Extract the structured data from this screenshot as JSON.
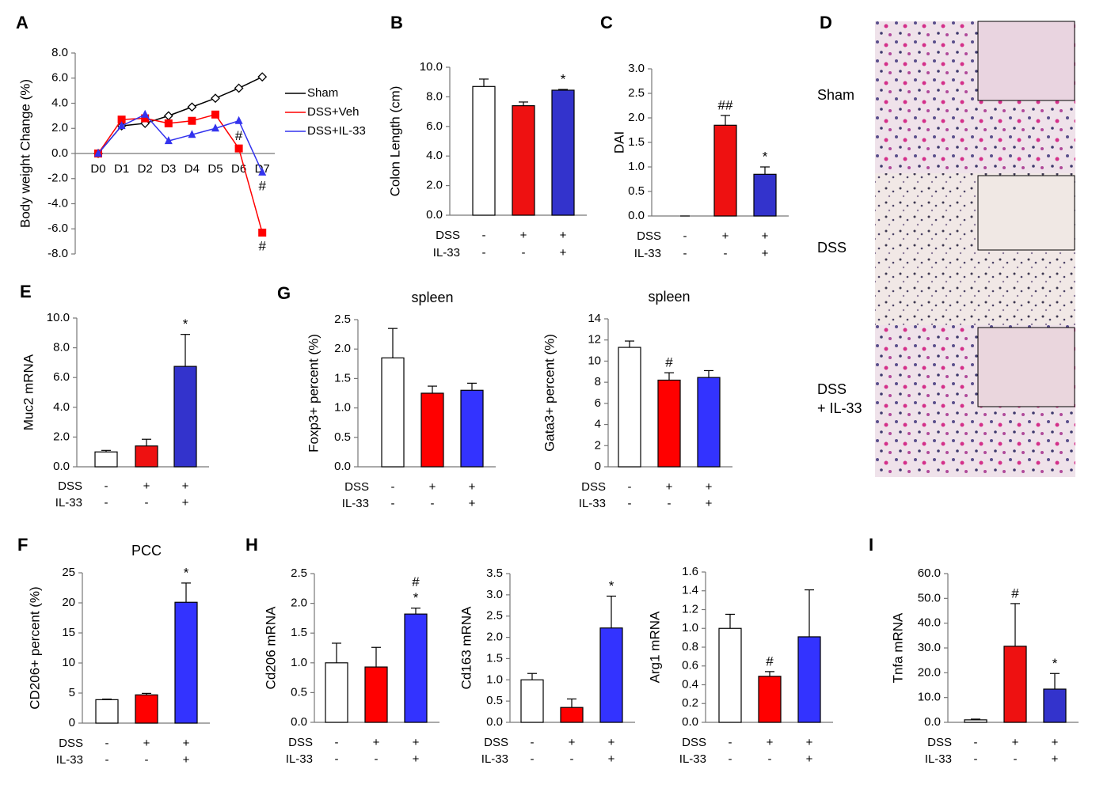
{
  "chart_data": [
    {
      "panel": "A",
      "type": "line",
      "ylabel": "Body weight Change (%)",
      "categories": [
        "D0",
        "D1",
        "D2",
        "D3",
        "D4",
        "D5",
        "D6",
        "D7"
      ],
      "series": [
        {
          "name": "Sham",
          "color": "#000000",
          "marker": "diamond",
          "values": [
            0,
            2.2,
            2.4,
            3.0,
            3.7,
            4.4,
            5.2,
            6.1
          ]
        },
        {
          "name": "DSS+Veh",
          "color": "#ff0000",
          "marker": "square",
          "values": [
            0,
            2.7,
            2.8,
            2.4,
            2.6,
            3.1,
            0.4,
            -6.3
          ]
        },
        {
          "name": "DSS+IL-33",
          "color": "#3333ee",
          "marker": "triangle",
          "values": [
            0,
            2.2,
            3.1,
            1.0,
            1.5,
            2.0,
            2.6,
            -1.5
          ]
        }
      ],
      "annotations": [
        {
          "text": "#",
          "series": 1,
          "index": 6,
          "position": "above"
        },
        {
          "text": "#",
          "series": 1,
          "index": 7,
          "position": "below"
        },
        {
          "text": "#",
          "series": 2,
          "index": 7,
          "position": "below"
        }
      ],
      "ylim": [
        -8,
        8
      ],
      "yticks": [
        {
          "value": -8,
          "label": "-8.0"
        },
        {
          "value": -6,
          "label": "-6.0"
        },
        {
          "value": -4,
          "label": "-4.0"
        },
        {
          "value": -2,
          "label": "-2.0"
        },
        {
          "value": 0,
          "label": "0.0"
        },
        {
          "value": 2,
          "label": "2.0"
        },
        {
          "value": 4,
          "label": "4.0"
        },
        {
          "value": 6,
          "label": "6.0"
        },
        {
          "value": 8,
          "label": "8.0"
        }
      ]
    },
    {
      "panel": "B",
      "type": "bar",
      "ylabel": "Colon Length (cm)",
      "values": [
        8.7,
        7.4,
        8.45
      ],
      "errors": [
        0.5,
        0.25,
        0.05
      ],
      "colors": [
        "#ffffff",
        "#ee1111",
        "#3333cc"
      ],
      "annotations": [
        {
          "text": "*",
          "index": 2
        }
      ],
      "conditions": [
        {
          "name": "DSS",
          "signs": [
            "-",
            "+",
            "+"
          ]
        },
        {
          "name": "IL-33",
          "signs": [
            "-",
            "-",
            "+"
          ]
        }
      ],
      "ylim": [
        0,
        10
      ],
      "yticks": [
        {
          "value": 0,
          "label": "0.0"
        },
        {
          "value": 2,
          "label": "2.0"
        },
        {
          "value": 4,
          "label": "4.0"
        },
        {
          "value": 6,
          "label": "6.0"
        },
        {
          "value": 8,
          "label": "8.0"
        },
        {
          "value": 10,
          "label": "10.0"
        }
      ]
    },
    {
      "panel": "C",
      "type": "bar",
      "ylabel": "DAI",
      "values": [
        0,
        1.85,
        0.85
      ],
      "errors": [
        0,
        0.2,
        0.15
      ],
      "colors": [
        "#ffffff",
        "#ee1111",
        "#3333cc"
      ],
      "annotations": [
        {
          "text": "##",
          "index": 1
        },
        {
          "text": "*",
          "index": 2
        }
      ],
      "conditions": [
        {
          "name": "DSS",
          "signs": [
            "-",
            "+",
            "+"
          ]
        },
        {
          "name": "IL-33",
          "signs": [
            "-",
            "-",
            "+"
          ]
        }
      ],
      "ylim": [
        0,
        3
      ],
      "yticks": [
        {
          "value": 0,
          "label": "0.0"
        },
        0.5,
        {
          "value": 1,
          "label": "1.0"
        },
        1.5,
        {
          "value": 2,
          "label": "2.0"
        },
        2.5,
        {
          "value": 3,
          "label": "3.0"
        }
      ]
    },
    {
      "panel": "D",
      "type": "image",
      "labels": [
        [
          "Sham"
        ],
        [
          "DSS"
        ],
        [
          "DSS",
          "+ IL-33"
        ]
      ]
    },
    {
      "panel": "E",
      "type": "bar",
      "ylabel": "Muc2 mRNA",
      "values": [
        1.0,
        1.4,
        6.75
      ],
      "errors": [
        0.1,
        0.45,
        2.15
      ],
      "colors": [
        "#ffffff",
        "#ee1111",
        "#3333cc"
      ],
      "annotations": [
        {
          "text": "*",
          "index": 2
        }
      ],
      "conditions": [
        {
          "name": "DSS",
          "signs": [
            "-",
            "+",
            "+"
          ]
        },
        {
          "name": "IL-33",
          "signs": [
            "-",
            "-",
            "+"
          ]
        }
      ],
      "ylim": [
        0,
        10
      ],
      "yticks": [
        {
          "value": 0,
          "label": "0.0"
        },
        {
          "value": 2,
          "label": "2.0"
        },
        {
          "value": 4,
          "label": "4.0"
        },
        {
          "value": 6,
          "label": "6.0"
        },
        {
          "value": 8,
          "label": "8.0"
        },
        {
          "value": 10,
          "label": "10.0"
        }
      ]
    },
    {
      "panel": "G",
      "type": "bar",
      "title": "spleen",
      "ylabel": "Foxp3+ percent (%)",
      "values": [
        1.85,
        1.25,
        1.3
      ],
      "errors": [
        0.5,
        0.12,
        0.12
      ],
      "colors": [
        "#ffffff",
        "#ff0000",
        "#3333ff"
      ],
      "annotations": [],
      "conditions": [
        {
          "name": "DSS",
          "signs": [
            "-",
            "+",
            "+"
          ]
        },
        {
          "name": "IL-33",
          "signs": [
            "-",
            "-",
            "+"
          ]
        }
      ],
      "ylim": [
        0,
        2.5
      ],
      "yticks": [
        {
          "value": 0,
          "label": "0.0"
        },
        0.5,
        {
          "value": 1,
          "label": "1.0"
        },
        1.5,
        {
          "value": 2,
          "label": "2.0"
        },
        2.5
      ]
    },
    {
      "type": "bar",
      "title": "spleen",
      "ylabel": "Gata3+ percent (%)",
      "values": [
        11.3,
        8.2,
        8.45
      ],
      "errors": [
        0.6,
        0.7,
        0.65
      ],
      "colors": [
        "#ffffff",
        "#ff0000",
        "#3333ff"
      ],
      "annotations": [
        {
          "text": "#",
          "index": 1
        }
      ],
      "conditions": [
        {
          "name": "DSS",
          "signs": [
            "-",
            "+",
            "+"
          ]
        },
        {
          "name": "IL-33",
          "signs": [
            "-",
            "-",
            "+"
          ]
        }
      ],
      "ylim": [
        0,
        14
      ],
      "yticks": [
        0,
        2,
        4,
        6,
        8,
        10,
        12,
        14
      ]
    },
    {
      "panel": "F",
      "type": "bar",
      "title": "PCC",
      "ylabel": "CD206+ percent (%)",
      "values": [
        3.9,
        4.7,
        20.1
      ],
      "errors": [
        0.1,
        0.25,
        3.2
      ],
      "colors": [
        "#ffffff",
        "#ff0000",
        "#3333ff"
      ],
      "annotations": [
        {
          "text": "*",
          "index": 2
        }
      ],
      "conditions": [
        {
          "name": "DSS",
          "signs": [
            "-",
            "+",
            "+"
          ]
        },
        {
          "name": "IL-33",
          "signs": [
            "-",
            "-",
            "+"
          ]
        }
      ],
      "ylim": [
        0,
        25
      ],
      "yticks": [
        0,
        5,
        10,
        15,
        20,
        25
      ]
    },
    {
      "panel": "H",
      "type": "bar",
      "ylabel": "Cd206 mRNA",
      "values": [
        1.0,
        0.93,
        1.82
      ],
      "errors": [
        0.33,
        0.33,
        0.1
      ],
      "colors": [
        "#ffffff",
        "#ff0000",
        "#3333ff"
      ],
      "annotations": [
        {
          "text": "*",
          "index": 2
        },
        {
          "text": "#",
          "index": 2
        }
      ],
      "conditions": [
        {
          "name": "DSS",
          "signs": [
            "-",
            "+",
            "+"
          ]
        },
        {
          "name": "IL-33",
          "signs": [
            "-",
            "-",
            "+"
          ]
        }
      ],
      "ylim": [
        0,
        2.5
      ],
      "yticks": [
        {
          "value": 0,
          "label": "0.0"
        },
        0.5,
        {
          "value": 1,
          "label": "1.0"
        },
        1.5,
        {
          "value": 2,
          "label": "2.0"
        },
        2.5
      ]
    },
    {
      "type": "bar",
      "ylabel": "Cd163 mRNA",
      "values": [
        1.0,
        0.35,
        2.22
      ],
      "errors": [
        0.15,
        0.2,
        0.75
      ],
      "colors": [
        "#ffffff",
        "#ff0000",
        "#3333ff"
      ],
      "annotations": [
        {
          "text": "*",
          "index": 2
        }
      ],
      "conditions": [
        {
          "name": "DSS",
          "signs": [
            "-",
            "+",
            "+"
          ]
        },
        {
          "name": "IL-33",
          "signs": [
            "-",
            "-",
            "+"
          ]
        }
      ],
      "ylim": [
        0,
        3.5
      ],
      "yticks": [
        {
          "value": 0,
          "label": "0.0"
        },
        0.5,
        {
          "value": 1,
          "label": "1.0"
        },
        1.5,
        {
          "value": 2,
          "label": "2.0"
        },
        2.5,
        {
          "value": 3,
          "label": "3.0"
        },
        3.5
      ]
    },
    {
      "type": "bar",
      "ylabel": "Arg1 mRNA",
      "values": [
        1.0,
        0.49,
        0.91
      ],
      "errors": [
        0.15,
        0.05,
        0.5
      ],
      "colors": [
        "#ffffff",
        "#ff0000",
        "#3333ff"
      ],
      "annotations": [
        {
          "text": "#",
          "index": 1
        }
      ],
      "conditions": [
        {
          "name": "DSS",
          "signs": [
            "-",
            "+",
            "+"
          ]
        },
        {
          "name": "IL-33",
          "signs": [
            "-",
            "-",
            "+"
          ]
        }
      ],
      "ylim": [
        0,
        1.6
      ],
      "yticks": [
        {
          "value": 0,
          "label": "0.0"
        },
        0.2,
        0.4,
        0.6,
        0.8,
        {
          "value": 1,
          "label": "1.0"
        },
        1.2,
        1.4,
        1.6
      ]
    },
    {
      "panel": "I",
      "type": "bar",
      "ylabel": "Tnfa mRNA",
      "values": [
        1.0,
        30.7,
        13.4
      ],
      "errors": [
        0.3,
        17.2,
        6.3
      ],
      "colors": [
        "#ffffff",
        "#ee1111",
        "#3333cc"
      ],
      "annotations": [
        {
          "text": "#",
          "index": 1
        },
        {
          "text": "*",
          "index": 2
        }
      ],
      "conditions": [
        {
          "name": "DSS",
          "signs": [
            "-",
            "+",
            "+"
          ]
        },
        {
          "name": "IL-33",
          "signs": [
            "-",
            "-",
            "+"
          ]
        }
      ],
      "ylim": [
        0,
        60
      ],
      "yticks": [
        {
          "value": 0,
          "label": "0.0"
        },
        {
          "value": 10,
          "label": "10.0"
        },
        {
          "value": 20,
          "label": "20.0"
        },
        {
          "value": 30,
          "label": "30.0"
        },
        {
          "value": 40,
          "label": "40.0"
        },
        {
          "value": 50,
          "label": "50.0"
        },
        {
          "value": 60,
          "label": "60.0"
        }
      ]
    }
  ]
}
